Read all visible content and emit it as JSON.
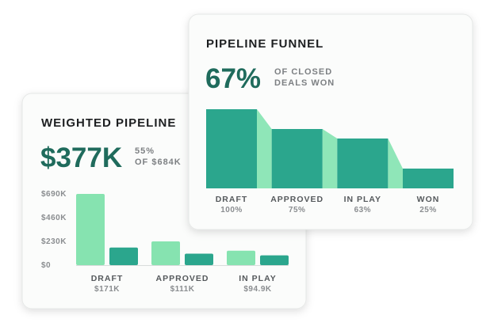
{
  "chart_data": [
    {
      "type": "bar",
      "title": "WEIGHTED PIPELINE",
      "kpi": "$377K",
      "kpi_caption": [
        "55%",
        "OF $684K"
      ],
      "categories": [
        "DRAFT",
        "APPROVED",
        "IN PLAY"
      ],
      "series": [
        {
          "color": "#86e3b0",
          "values": [
            690000,
            230000,
            140000
          ]
        },
        {
          "color": "#2ba68d",
          "values": [
            171000,
            111000,
            94900
          ],
          "value_labels": [
            "$171K",
            "$111K",
            "$94.9K"
          ]
        }
      ],
      "ylim": [
        0,
        690000
      ],
      "yticks": [
        {
          "value": 0,
          "label": "$0"
        },
        {
          "value": 230000,
          "label": "$230K"
        },
        {
          "value": 460000,
          "label": "$460K"
        },
        {
          "value": 690000,
          "label": "$690K"
        }
      ]
    },
    {
      "type": "funnel",
      "title": "PIPELINE FUNNEL",
      "kpi": "67%",
      "kpi_caption": [
        "OF CLOSED",
        "DEALS WON"
      ],
      "categories": [
        "DRAFT",
        "APPROVED",
        "IN PLAY",
        "WON"
      ],
      "values": [
        100,
        75,
        63,
        25
      ],
      "value_labels": [
        "100%",
        "75%",
        "63%",
        "25%"
      ],
      "color": "#2ba68d",
      "connector_color": "#8fe6b8"
    }
  ]
}
